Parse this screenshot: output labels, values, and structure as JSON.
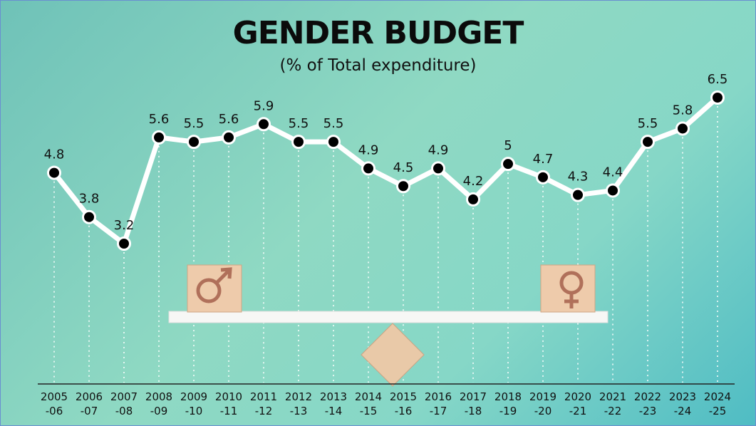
{
  "header": {
    "title": "GENDER BUDGET",
    "subtitle": "(% of Total expenditure)"
  },
  "colors": {
    "line": "#ffffff",
    "marker_fill": "#000000",
    "marker_stroke": "#ffffff",
    "block": "#e9c7a6",
    "symbol": "#b0705a"
  },
  "icons": {
    "left_block": "male-symbol-icon",
    "right_block": "female-symbol-icon"
  },
  "chart_data": {
    "type": "line",
    "title": "GENDER BUDGET",
    "subtitle": "(% of Total expenditure)",
    "xlabel": "",
    "ylabel": "",
    "ylim": [
      3,
      7
    ],
    "grid": "dotted vertical lines",
    "categories": [
      [
        "2005",
        "-06"
      ],
      [
        "2006",
        "-07"
      ],
      [
        "2007",
        "-08"
      ],
      [
        "2008",
        "-09"
      ],
      [
        "2009",
        "-10"
      ],
      [
        "2010",
        "-11"
      ],
      [
        "2011",
        "-12"
      ],
      [
        "2012",
        "-13"
      ],
      [
        "2013",
        "-14"
      ],
      [
        "2014",
        "-15"
      ],
      [
        "2015",
        "-16"
      ],
      [
        "2016",
        "-17"
      ],
      [
        "2017",
        "-18"
      ],
      [
        "2018",
        "-19"
      ],
      [
        "2019",
        "-20"
      ],
      [
        "2020",
        "-21"
      ],
      [
        "2021",
        "-22"
      ],
      [
        "2022",
        "-23"
      ],
      [
        "2023",
        "-24"
      ],
      [
        "2024",
        "-25"
      ]
    ],
    "values": [
      4.8,
      3.8,
      3.2,
      5.6,
      5.5,
      5.6,
      5.9,
      5.5,
      5.5,
      4.9,
      4.5,
      4.9,
      4.2,
      5,
      4.7,
      4.3,
      4.4,
      5.5,
      5.8,
      6.5
    ],
    "value_labels": [
      "4.8",
      "3.8",
      "3.2",
      "5.6",
      "5.5",
      "5.6",
      "5.9",
      "5.5",
      "5.5",
      "4.9",
      "4.5",
      "4.9",
      "4.2",
      "5",
      "4.7",
      "4.3",
      "4.4",
      "5.5",
      "5.8",
      "6.5"
    ]
  }
}
